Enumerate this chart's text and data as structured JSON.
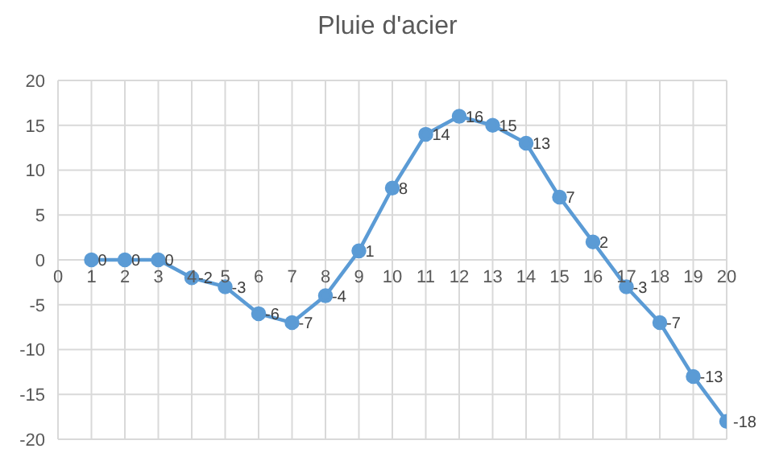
{
  "chart_data": {
    "type": "line",
    "title": "Pluie d'acier",
    "x": [
      1,
      2,
      3,
      4,
      5,
      6,
      7,
      8,
      9,
      10,
      11,
      12,
      13,
      14,
      15,
      16,
      17,
      18,
      19,
      20
    ],
    "series": [
      {
        "color": "#5b9bd5",
        "values": [
          0,
          0,
          0,
          -2,
          -3,
          -6,
          -7,
          -4,
          1,
          8,
          14,
          16,
          15,
          13,
          7,
          2,
          -3,
          -7,
          -13,
          -18
        ]
      }
    ],
    "xlim": [
      0,
      20
    ],
    "xticks": [
      0,
      1,
      2,
      3,
      4,
      5,
      6,
      7,
      8,
      9,
      10,
      11,
      12,
      13,
      14,
      15,
      16,
      17,
      18,
      19,
      20
    ],
    "ylim": [
      -20,
      20
    ],
    "yticks": [
      -20,
      -15,
      -10,
      -5,
      0,
      5,
      10,
      15,
      20
    ],
    "grid": true,
    "marker": "circle",
    "line_style": "solid",
    "data_labels": true,
    "legend": false
  }
}
